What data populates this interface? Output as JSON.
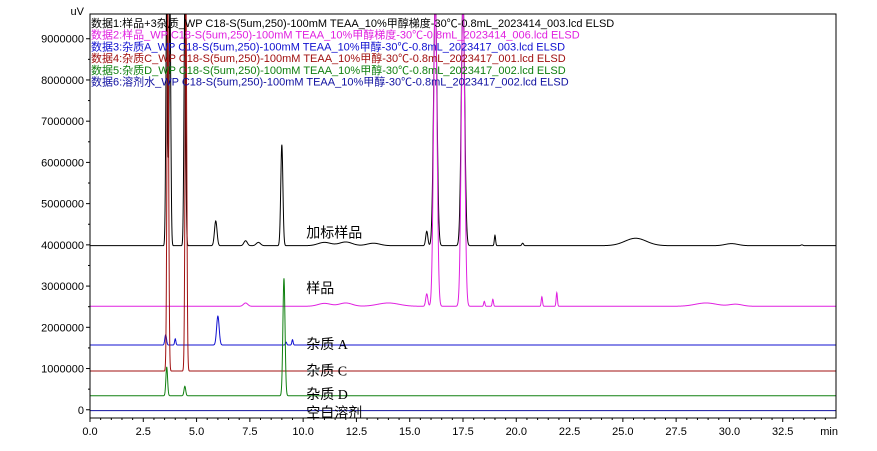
{
  "chart_data": {
    "type": "line",
    "y_unit": "uV",
    "x_unit": "min",
    "xlim": [
      0,
      35
    ],
    "ylim": [
      -200000,
      9600000
    ],
    "x_ticks": [
      "0.0",
      "2.5",
      "5.0",
      "7.5",
      "10.0",
      "12.5",
      "15.0",
      "17.5",
      "20.0",
      "22.5",
      "25.0",
      "27.5",
      "30.0",
      "32.5"
    ],
    "y_ticks": [
      "0",
      "1000000",
      "2000000",
      "3000000",
      "4000000",
      "5000000",
      "6000000",
      "7000000",
      "8000000",
      "9000000"
    ],
    "grid": false,
    "legend_position": "top-left",
    "legend": [
      {
        "text": "数据1:样品+3杂质_WP C18-S(5um,250)-100mM TEAA_10%甲醇梯度-30℃-0.8mL_2023414_003.lcd ELSD",
        "color": "#000000"
      },
      {
        "text": "数据2:样品_WP C18-S(5um,250)-100mM TEAA_10%甲醇梯度-30℃-0.8mL_2023414_006.lcd ELSD",
        "color": "#e020e0"
      },
      {
        "text": "数据3:杂质A_WP C18-S(5um,250)-100mM TEAA_10%甲醇-30℃-0.8mL_2023417_003.lcd ELSD",
        "color": "#1010d0"
      },
      {
        "text": "数据4:杂质C_WP C18-S(5um,250)-100mM TEAA_10%甲醇-30℃-0.8mL_2023417_001.lcd ELSD",
        "color": "#a01010"
      },
      {
        "text": "数据5:杂质D_WP C18-S(5um,250)-100mM TEAA_10%甲醇-30℃-0.8mL_2023417_002.lcd ELSD",
        "color": "#108010"
      },
      {
        "text": "数据6:溶剂水_WP C18-S(5um,250)-100mM TEAA_10%甲醇-30℃-0.8mL_2023417_002.lcd ELSD",
        "color": "#1010a0"
      }
    ],
    "annotations": [
      {
        "text": "加标样品",
        "x": 10.1,
        "y": 4300000
      },
      {
        "text": "样品",
        "x": 10.1,
        "y": 2950000
      },
      {
        "text": "杂质 A",
        "x": 10.1,
        "y": 1600000
      },
      {
        "text": "杂质 C",
        "x": 10.1,
        "y": 950000
      },
      {
        "text": "杂质 D",
        "x": 10.1,
        "y": 380000
      },
      {
        "text": "空白溶剂",
        "x": 10.1,
        "y": -70000
      }
    ],
    "series": [
      {
        "color": "#000000",
        "baseline": 3980000,
        "peaks": [
          {
            "t": 3.6,
            "h": 6200000,
            "w": 0.04
          },
          {
            "t": 3.75,
            "h": 6000000,
            "w": 0.04
          },
          {
            "t": 4.45,
            "h": 6000000,
            "w": 0.04
          },
          {
            "t": 5.9,
            "h": 600000,
            "w": 0.06
          },
          {
            "t": 7.3,
            "h": 120000,
            "w": 0.08
          },
          {
            "t": 7.9,
            "h": 80000,
            "w": 0.1
          },
          {
            "t": 9.0,
            "h": 2450000,
            "w": 0.05
          },
          {
            "t": 11.0,
            "h": 80000,
            "w": 0.3
          },
          {
            "t": 12.0,
            "h": 90000,
            "w": 0.3
          },
          {
            "t": 13.3,
            "h": 60000,
            "w": 0.3
          },
          {
            "t": 15.8,
            "h": 350000,
            "w": 0.05
          },
          {
            "t": 16.2,
            "h": 6000000,
            "w": 0.08
          },
          {
            "t": 17.5,
            "h": 6000000,
            "w": 0.08
          },
          {
            "t": 19.0,
            "h": 250000,
            "w": 0.03
          },
          {
            "t": 20.3,
            "h": 60000,
            "w": 0.04
          },
          {
            "t": 25.6,
            "h": 180000,
            "w": 0.5
          },
          {
            "t": 30.1,
            "h": 50000,
            "w": 0.3
          },
          {
            "t": 33.4,
            "h": 20000,
            "w": 0.05
          }
        ]
      },
      {
        "color": "#e020e0",
        "baseline": 2510000,
        "peaks": [
          {
            "t": 7.3,
            "h": 80000,
            "w": 0.1
          },
          {
            "t": 11.0,
            "h": 70000,
            "w": 0.3
          },
          {
            "t": 12.0,
            "h": 80000,
            "w": 0.3
          },
          {
            "t": 14.0,
            "h": 80000,
            "w": 0.5
          },
          {
            "t": 15.8,
            "h": 300000,
            "w": 0.05
          },
          {
            "t": 16.2,
            "h": 7500000,
            "w": 0.08
          },
          {
            "t": 17.5,
            "h": 7500000,
            "w": 0.08
          },
          {
            "t": 18.5,
            "h": 120000,
            "w": 0.03
          },
          {
            "t": 18.9,
            "h": 170000,
            "w": 0.03
          },
          {
            "t": 21.2,
            "h": 230000,
            "w": 0.03
          },
          {
            "t": 21.9,
            "h": 330000,
            "w": 0.03
          },
          {
            "t": 28.9,
            "h": 80000,
            "w": 0.5
          },
          {
            "t": 30.3,
            "h": 50000,
            "w": 0.3
          }
        ]
      },
      {
        "color": "#1010d0",
        "baseline": 1570000,
        "peaks": [
          {
            "t": 3.55,
            "h": 250000,
            "w": 0.04
          },
          {
            "t": 4.0,
            "h": 150000,
            "w": 0.03
          },
          {
            "t": 6.0,
            "h": 700000,
            "w": 0.06
          },
          {
            "t": 9.2,
            "h": 70000,
            "w": 0.03
          },
          {
            "t": 9.5,
            "h": 130000,
            "w": 0.03
          }
        ]
      },
      {
        "color": "#a01010",
        "baseline": 940000,
        "peaks": [
          {
            "t": 3.65,
            "h": 9000000,
            "w": 0.04
          },
          {
            "t": 4.5,
            "h": 9000000,
            "w": 0.04
          }
        ]
      },
      {
        "color": "#108010",
        "baseline": 340000,
        "peaks": [
          {
            "t": 3.6,
            "h": 700000,
            "w": 0.04
          },
          {
            "t": 4.45,
            "h": 230000,
            "w": 0.04
          },
          {
            "t": 9.1,
            "h": 2850000,
            "w": 0.05
          }
        ]
      },
      {
        "color": "#1010a0",
        "baseline": -20000,
        "peaks": []
      }
    ]
  }
}
